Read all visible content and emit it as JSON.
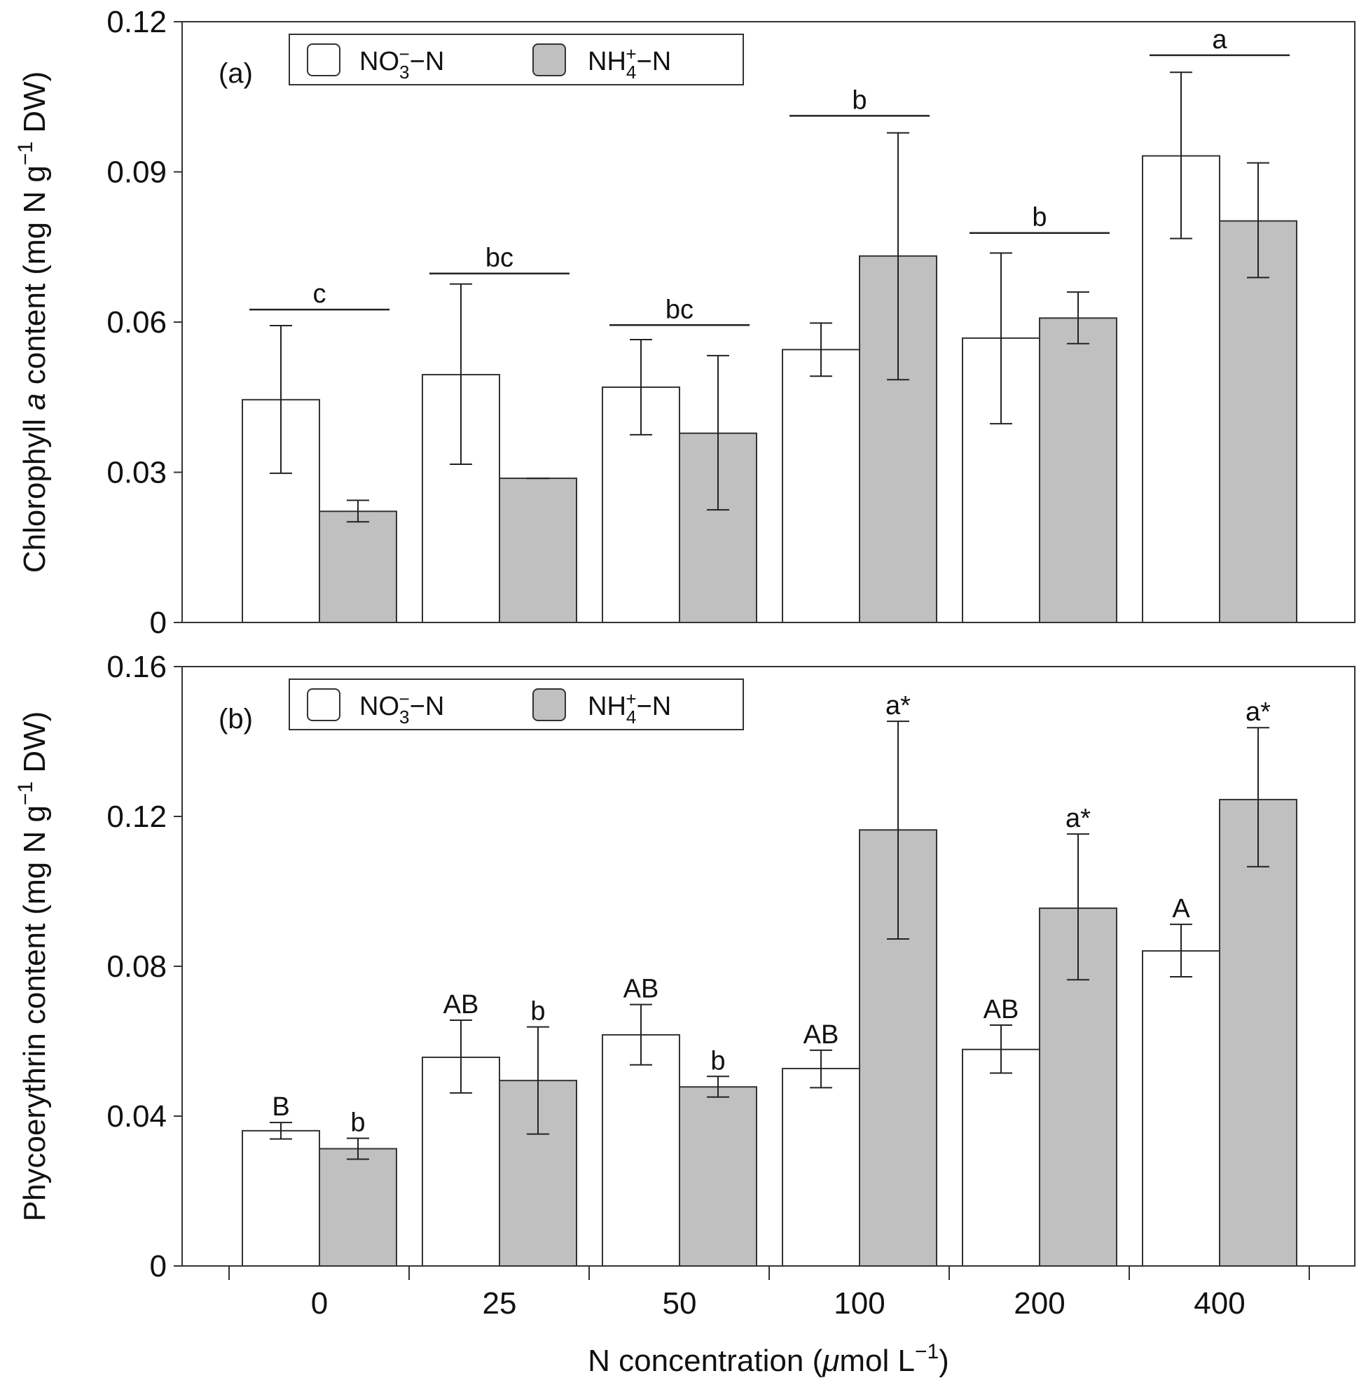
{
  "chart_data": [
    {
      "type": "bar",
      "panel_label": "(a)",
      "ylabel_pre": "Chlorophyll ",
      "ylabel_italic": "a",
      "ylabel_post": " content (mg N g",
      "ylabel_sup": "−1",
      "ylabel_end": " DW)",
      "ylim": [
        0,
        0.12
      ],
      "yticks": [
        "0",
        "0.03",
        "0.06",
        "0.09",
        "0.12"
      ],
      "ytick_values": [
        0,
        0.03,
        0.06,
        0.09,
        0.12
      ],
      "categories": [
        "0",
        "25",
        "50",
        "100",
        "200",
        "400"
      ],
      "series": [
        {
          "name": "NO3−N",
          "color": "#ffffff",
          "values": [
            0.0445,
            0.0495,
            0.047,
            0.0545,
            0.0568,
            0.0932
          ],
          "err_low": [
            0.0298,
            0.0316,
            0.0375,
            0.0492,
            0.0397,
            0.0767
          ],
          "err_high": [
            0.0593,
            0.0676,
            0.0565,
            0.0598,
            0.0738,
            0.1099
          ]
        },
        {
          "name": "NH4+−N",
          "color": "#c0c0c0",
          "values": [
            0.0222,
            0.0288,
            0.0378,
            0.0732,
            0.0608,
            0.0802
          ],
          "err_low": [
            0.0201,
            0.0288,
            0.0225,
            0.0485,
            0.0557,
            0.0689
          ],
          "err_high": [
            0.0244,
            0.0288,
            0.0533,
            0.0978,
            0.066,
            0.0918
          ]
        }
      ],
      "group_letters": [
        "c",
        "bc",
        "bc",
        "b",
        "b",
        "a"
      ],
      "group_line_y": [
        0.0625,
        0.0697,
        0.0594,
        0.1012,
        0.0778,
        0.1133
      ],
      "legend": {
        "no3_main": "NO",
        "no3_sub": "3",
        "no3_sup": "−",
        "no3_end": "−N",
        "nh4_main": "NH",
        "nh4_sub": "4",
        "nh4_sup": "+",
        "nh4_end": "−N"
      }
    },
    {
      "type": "bar",
      "panel_label": "(b)",
      "ylabel_pre": "Phycoerythrin content (mg N g",
      "ylabel_sup": "−1",
      "ylabel_end": " DW)",
      "ylim": [
        0,
        0.16
      ],
      "yticks": [
        "0",
        "0.04",
        "0.08",
        "0.12",
        "0.16"
      ],
      "ytick_values": [
        0,
        0.04,
        0.08,
        0.12,
        0.16
      ],
      "categories": [
        "0",
        "25",
        "50",
        "100",
        "200",
        "400"
      ],
      "series": [
        {
          "name": "NO3−N",
          "color": "#ffffff",
          "values": [
            0.0361,
            0.0557,
            0.0617,
            0.0527,
            0.0578,
            0.0841
          ],
          "err_low": [
            0.0339,
            0.0462,
            0.0537,
            0.0476,
            0.0515,
            0.0772
          ],
          "err_high": [
            0.0383,
            0.0656,
            0.0698,
            0.0576,
            0.0643,
            0.0912
          ]
        },
        {
          "name": "NH4+−N",
          "color": "#c0c0c0",
          "values": [
            0.0313,
            0.0495,
            0.0478,
            0.1164,
            0.0955,
            0.1245
          ],
          "err_low": [
            0.0285,
            0.0352,
            0.0451,
            0.0873,
            0.0764,
            0.1066
          ],
          "err_high": [
            0.0341,
            0.0638,
            0.0506,
            0.1454,
            0.1153,
            0.1437
          ]
        }
      ],
      "no3_letters": [
        "B",
        "AB",
        "AB",
        "AB",
        "AB",
        "A"
      ],
      "nh4_letters": [
        "b",
        "b",
        "b",
        "a*",
        "a*",
        "a*"
      ],
      "legend": {
        "no3_main": "NO",
        "no3_sub": "3",
        "no3_sup": "−",
        "no3_end": "−N",
        "nh4_main": "NH",
        "nh4_sub": "4",
        "nh4_sup": "+",
        "nh4_end": "−N"
      }
    }
  ],
  "xlabel": {
    "pre": "N concentration (",
    "mu": "μ",
    "mid": "mol L",
    "sup": "−1",
    "end": ")"
  }
}
